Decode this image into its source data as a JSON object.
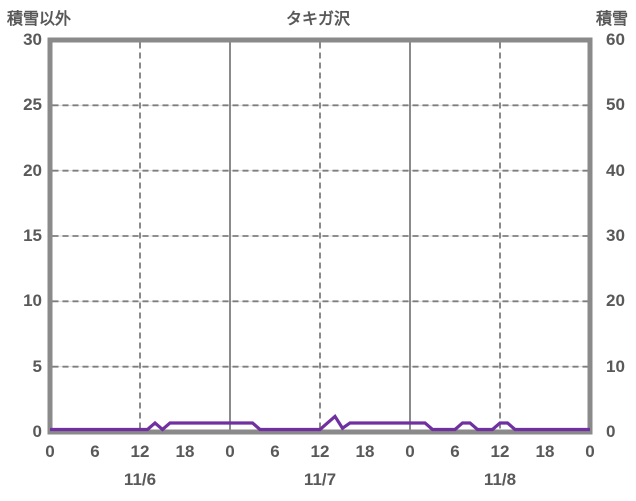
{
  "chart_data": {
    "type": "line",
    "title": "タキガ沢",
    "left_axis": {
      "title": "積雪以外",
      "min": 0,
      "max": 30,
      "ticks": [
        30,
        25,
        20,
        15,
        10,
        5,
        0
      ]
    },
    "right_axis": {
      "title": "積雪",
      "min": 0,
      "max": 60,
      "ticks": [
        60,
        50,
        40,
        30,
        20,
        10,
        0
      ]
    },
    "x_axis": {
      "min_hour": 0,
      "max_hour": 72,
      "x_start_hour": 0,
      "x_step_hours": 1,
      "tick_hours": [
        0,
        6,
        12,
        18,
        24,
        30,
        36,
        42,
        48,
        54,
        60,
        66,
        72
      ],
      "tick_labels": [
        "0",
        "6",
        "12",
        "18",
        "0",
        "6",
        "12",
        "18",
        "0",
        "6",
        "12",
        "18",
        "0"
      ],
      "date_labels": [
        {
          "label": "11/6",
          "center_hour": 12
        },
        {
          "label": "11/7",
          "center_hour": 36
        },
        {
          "label": "11/8",
          "center_hour": 60
        }
      ]
    },
    "gridlines": {
      "horizontal_left_units": [
        5,
        10,
        15,
        20,
        25
      ],
      "vertical_dashed_hours": [
        12,
        36,
        60
      ],
      "vertical_solid_hours": [
        24,
        48
      ]
    },
    "series": [
      {
        "name": "積雪以外",
        "axis": "left",
        "color": "#7030A0",
        "values": [
          0,
          0,
          0,
          0,
          0,
          0,
          0,
          0,
          0,
          0,
          0,
          0,
          0,
          0,
          0.5,
          0,
          0.5,
          0.5,
          0.5,
          0.5,
          0.5,
          0.5,
          0.5,
          0.5,
          0.5,
          0.5,
          0.5,
          0.5,
          0,
          0,
          0,
          0,
          0,
          0,
          0,
          0,
          0,
          0.5,
          1,
          0.1,
          0.5,
          0.5,
          0.5,
          0.5,
          0.5,
          0.5,
          0.5,
          0.5,
          0.5,
          0.5,
          0.5,
          0,
          0,
          0,
          0,
          0.5,
          0.5,
          0,
          0,
          0,
          0.5,
          0.5,
          0,
          0,
          0,
          0,
          0,
          0,
          0,
          0,
          0,
          0,
          0
        ]
      }
    ],
    "colors": {
      "line": "#7030A0",
      "text": "#595959",
      "frame": "#8A8A8A",
      "gridline_dark": "#7E7E7E",
      "gridline_light": "#DBDBDB",
      "background": "#FFFFFF"
    }
  }
}
